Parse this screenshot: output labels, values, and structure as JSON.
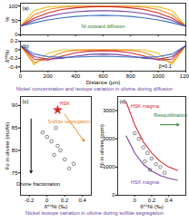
{
  "chart_data": [
    {
      "type": "line",
      "panel": "(a)",
      "y_label": "%",
      "xlim": [
        0,
        1200
      ],
      "xticks": [
        0,
        200,
        400,
        600,
        800,
        1000,
        1200
      ],
      "ylim": [
        0,
        110
      ],
      "yticks": [
        0,
        50,
        100
      ],
      "tick_labels": "y",
      "x": [
        0,
        100,
        200,
        300,
        400,
        500,
        600,
        700,
        800,
        900,
        1000,
        1100,
        1200
      ],
      "series": [
        {
          "color": "#e6c229",
          "values": [
            30,
            85,
            97,
            100,
            100,
            100,
            100,
            100,
            100,
            100,
            97,
            85,
            30
          ]
        },
        {
          "color": "#f08a24",
          "values": [
            30,
            70,
            88,
            96,
            99,
            100,
            100,
            100,
            99,
            96,
            88,
            70,
            30
          ]
        },
        {
          "color": "#d62728",
          "values": [
            30,
            58,
            76,
            88,
            94,
            97,
            98,
            97,
            94,
            88,
            76,
            58,
            30
          ]
        },
        {
          "color": "#7b3fa0",
          "values": [
            30,
            50,
            64,
            74,
            80,
            83,
            84,
            83,
            80,
            74,
            64,
            50,
            30
          ]
        },
        {
          "color": "#3a6fc4",
          "values": [
            30,
            42,
            52,
            59,
            64,
            67,
            68,
            67,
            64,
            59,
            52,
            42,
            30
          ]
        }
      ],
      "annotations": [
        {
          "text": "Ni outward diffusion",
          "x": 600,
          "y": 30,
          "color": "#2e7d32"
        }
      ]
    },
    {
      "type": "line",
      "panel": "(b)",
      "y_label": "δ⁶⁰Ni",
      "x_label": "Distance (μm)",
      "xlim": [
        0,
        1200
      ],
      "xticks": [
        0,
        200,
        400,
        600,
        800,
        1000,
        1200
      ],
      "ylim": [
        -0.5,
        0.2
      ],
      "yticks": [
        -0.4,
        -0.2,
        0,
        0.2
      ],
      "x": [
        0,
        100,
        200,
        300,
        400,
        500,
        600,
        700,
        800,
        900,
        1000,
        1100,
        1200
      ],
      "series": [
        {
          "color": "#e6c229",
          "values": [
            0.1,
            -0.35,
            -0.08,
            0,
            0,
            0,
            0,
            0,
            0,
            0,
            -0.08,
            -0.35,
            0.1
          ]
        },
        {
          "color": "#f08a24",
          "values": [
            0.1,
            -0.3,
            -0.2,
            -0.06,
            -0.01,
            0,
            0,
            0,
            -0.01,
            -0.06,
            -0.2,
            -0.3,
            0.1
          ]
        },
        {
          "color": "#d62728",
          "values": [
            0.1,
            -0.22,
            -0.24,
            -0.15,
            -0.07,
            -0.03,
            -0.02,
            -0.03,
            -0.07,
            -0.15,
            -0.24,
            -0.22,
            0.1
          ]
        },
        {
          "color": "#7b3fa0",
          "values": [
            0.1,
            -0.16,
            -0.22,
            -0.2,
            -0.15,
            -0.11,
            -0.1,
            -0.11,
            -0.15,
            -0.2,
            -0.22,
            -0.16,
            0.1
          ]
        },
        {
          "color": "#3a6fc4",
          "values": [
            0.1,
            -0.1,
            -0.16,
            -0.18,
            -0.17,
            -0.16,
            -0.15,
            -0.16,
            -0.17,
            -0.18,
            -0.16,
            -0.1,
            0.1
          ]
        }
      ],
      "annotations": [
        {
          "text": "β=0.1",
          "x": 1050,
          "y": -0.38,
          "color": "#000000"
        }
      ],
      "caption": "Nickel concentration and isotope variation in olivine during diffusion"
    },
    {
      "type": "scatter",
      "panel": "(c)",
      "y_label": "Fo in olivine (mol%)",
      "x_label": "δ⁶⁰Ni (‰)",
      "xlim": [
        -0.3,
        0.5
      ],
      "xticks": [
        -0.2,
        0,
        0.2,
        0.4
      ],
      "ylim": [
        70,
        92
      ],
      "yticks": [
        75,
        80,
        85,
        90
      ],
      "series": [
        {
          "color": "#555555",
          "marker": "circle",
          "x": [
            0.05,
            0.1,
            0.15,
            0.2,
            0.0,
            0.25,
            -0.05,
            0.12,
            0.3,
            0.08
          ],
          "y": [
            82,
            85,
            80,
            78,
            83,
            76,
            84,
            81,
            77,
            79
          ]
        },
        {
          "color": "#d62728",
          "marker": "star",
          "x": [
            0.12
          ],
          "y": [
            89
          ]
        }
      ],
      "arrows": [
        {
          "x1": -0.18,
          "y1": 87,
          "x2": -0.18,
          "y2": 75,
          "color": "#000000"
        },
        {
          "x1": 0.2,
          "y1": 88,
          "x2": 0.42,
          "y2": 82,
          "color": "#f08a24"
        }
      ],
      "annotations": [
        {
          "text": "HSK",
          "x": 0.2,
          "y": 90.5,
          "color": "#d62728"
        },
        {
          "text": "Olivine fractionation",
          "x": -0.1,
          "y": 72.5,
          "color": "#000000"
        },
        {
          "text": "Sulfide segregation",
          "x": 0.25,
          "y": 86.5,
          "color": "#f08a24"
        }
      ]
    },
    {
      "type": "scatter",
      "panel": "(d)",
      "y_label": "Ni in olivine (ppm)",
      "x_label": "δ⁶⁰Ni (‰)",
      "xlim": [
        -0.2,
        0.6
      ],
      "xticks": [
        0,
        0.2,
        0.4
      ],
      "ylim": [
        0,
        3500
      ],
      "yticks": [
        0,
        1000,
        2000,
        3000
      ],
      "series": [
        {
          "type": "line",
          "color": "#d62728",
          "x": [
            -0.1,
            0.0,
            0.1,
            0.2,
            0.3,
            0.4,
            0.5
          ],
          "y": [
            3300,
            2500,
            1900,
            1500,
            1200,
            1000,
            880
          ]
        },
        {
          "type": "line",
          "color": "#7b3fa0",
          "x": [
            -0.1,
            0.0,
            0.1,
            0.2,
            0.3,
            0.4,
            0.5
          ],
          "y": [
            2100,
            1500,
            1100,
            860,
            700,
            600,
            540
          ]
        },
        {
          "color": "#555555",
          "marker": "circle",
          "x": [
            0.05,
            0.1,
            0.15,
            0.2,
            0.25,
            0.12,
            0.3,
            0.0,
            0.18,
            0.35
          ],
          "y": [
            2000,
            1700,
            1500,
            1300,
            1100,
            1200,
            1000,
            2200,
            900,
            800
          ]
        }
      ],
      "arrows": [
        {
          "x1": 0.3,
          "y1": 2500,
          "x2": 0.52,
          "y2": 2500,
          "color": "#2e7d32"
        }
      ],
      "annotations": [
        {
          "text": "HSK magma",
          "x": 0.12,
          "y": 3150,
          "color": "#d62728"
        },
        {
          "text": "HSX magma",
          "x": 0.12,
          "y": 450,
          "color": "#7b3fa0"
        },
        {
          "text": "Reequilibration",
          "x": 0.42,
          "y": 2850,
          "color": "#2e7d32"
        }
      ],
      "caption": "Nickel isotope variation in olivine during sulfide segregation"
    }
  ]
}
